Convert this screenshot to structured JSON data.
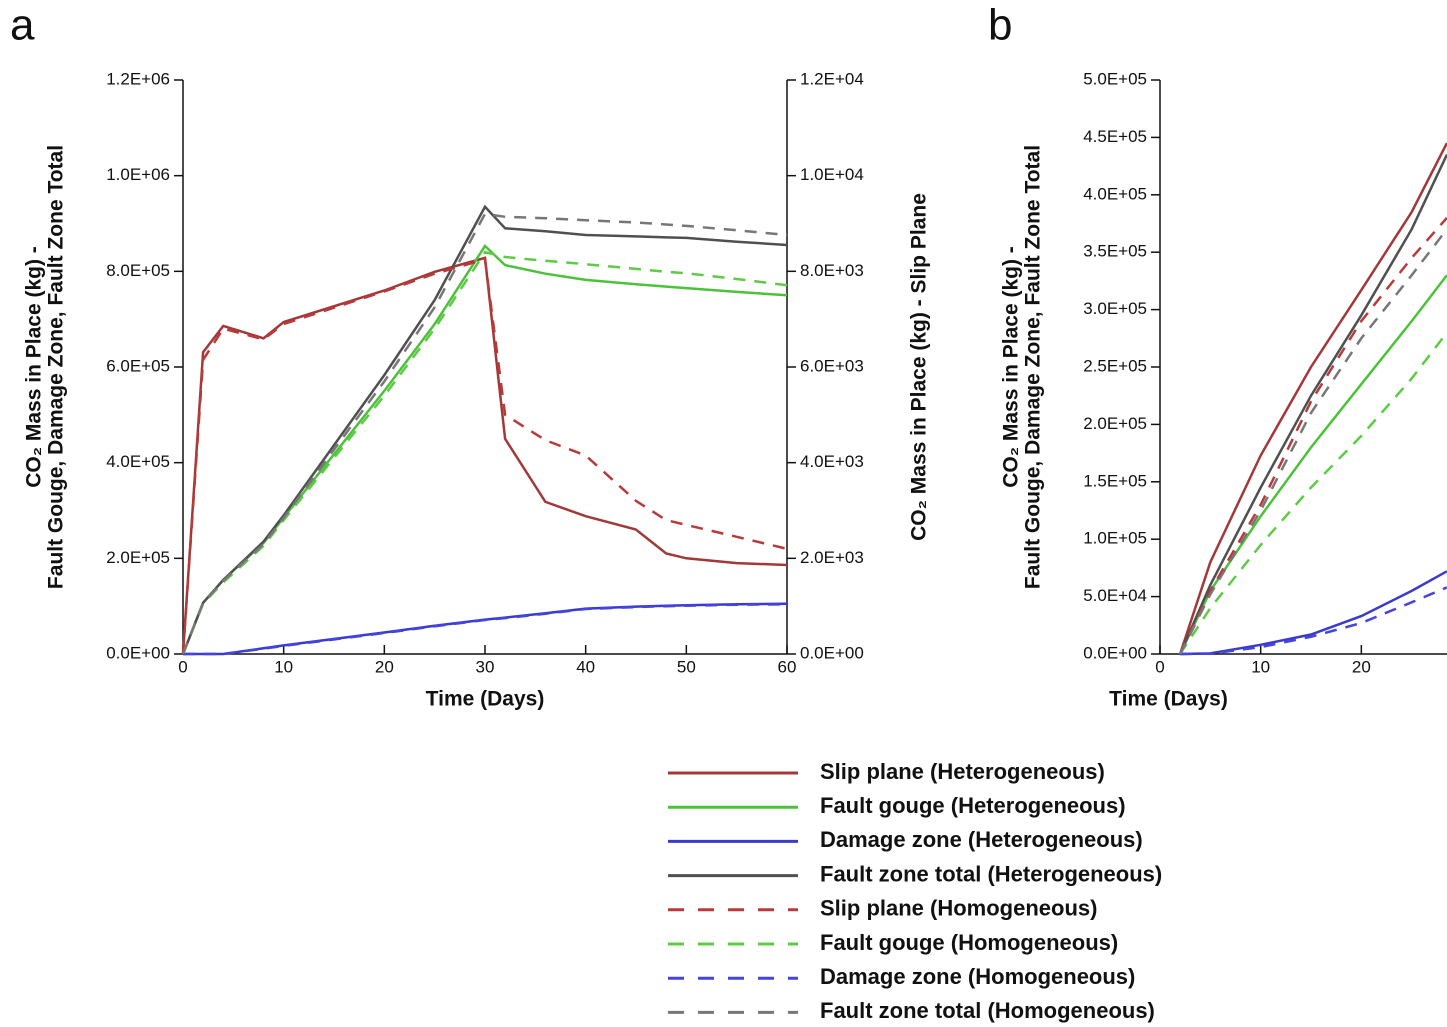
{
  "chart_data": [
    {
      "type": "line",
      "title": "a",
      "xlabel": "Time (Days)",
      "ylabel": [
        "CO₂ Mass in Place (kg) -",
        "Fault Gouge, Damage Zone, Fault Zone Total"
      ],
      "y2label": "CO₂ Mass in Place (kg) - Slip Plane",
      "x": [
        0,
        2,
        4,
        8,
        10,
        20,
        25,
        30,
        32,
        36,
        40,
        45,
        48,
        50,
        55,
        60
      ],
      "xlim": [
        0,
        60
      ],
      "xticks": [
        0,
        10,
        20,
        30,
        40,
        50,
        60
      ],
      "ylim": [
        0,
        1200000
      ],
      "yticks": [
        {
          "value": 0,
          "label": "0.0E+00"
        },
        {
          "value": 200000,
          "label": "2.0E+05"
        },
        {
          "value": 400000,
          "label": "4.0E+05"
        },
        {
          "value": 600000,
          "label": "6.0E+05"
        },
        {
          "value": 800000,
          "label": "8.0E+05"
        },
        {
          "value": 1000000,
          "label": "1.0E+06"
        },
        {
          "value": 1200000,
          "label": "1.2E+06"
        }
      ],
      "y2lim": [
        0,
        12000
      ],
      "y2ticks": [
        {
          "value": 0,
          "label": "0.0E+00"
        },
        {
          "value": 2000,
          "label": "2.0E+03"
        },
        {
          "value": 4000,
          "label": "4.0E+03"
        },
        {
          "value": 6000,
          "label": "6.0E+03"
        },
        {
          "value": 8000,
          "label": "8.0E+03"
        },
        {
          "value": 10000,
          "label": "1.0E+04"
        },
        {
          "value": 12000,
          "label": "1.2E+04"
        }
      ],
      "legend": "below",
      "series": [
        {
          "name": "Slip plane (Heterogeneous)",
          "color": "#a33838",
          "dash": false,
          "axis": "y2",
          "values": [
            0,
            6310,
            6860,
            6600,
            6940,
            7600,
            7990,
            8280,
            4500,
            3180,
            2880,
            2600,
            2100,
            2000,
            1900,
            1860
          ]
        },
        {
          "name": "Fault gouge (Heterogeneous)",
          "color": "#4cc23a",
          "dash": false,
          "values": [
            0,
            107000,
            155000,
            232000,
            285000,
            550000,
            690000,
            853000,
            813000,
            795000,
            782000,
            773000,
            768000,
            765000,
            757000,
            750000
          ]
        },
        {
          "name": "Damage zone (Heterogeneous)",
          "color": "#3a3acf",
          "dash": false,
          "values": [
            0,
            0,
            0,
            12000,
            18000,
            45000,
            59000,
            72000,
            76000,
            85000,
            95000,
            99000,
            101000,
            102000,
            104000,
            105000
          ]
        },
        {
          "name": "Fault zone total (Heterogeneous)",
          "color": "#505050",
          "dash": false,
          "values": [
            0,
            107000,
            155000,
            235000,
            290000,
            583000,
            740000,
            935000,
            890000,
            884000,
            876000,
            873000,
            871000,
            870000,
            862000,
            855000
          ]
        },
        {
          "name": "Slip plane (Homogeneous)",
          "color": "#b83a3a",
          "dash": true,
          "axis": "y2",
          "values": [
            0,
            6150,
            6800,
            6580,
            6900,
            7580,
            7950,
            8250,
            5000,
            4470,
            4150,
            3200,
            2800,
            2700,
            2450,
            2200
          ]
        },
        {
          "name": "Fault gouge (Homogeneous)",
          "color": "#5ccc45",
          "dash": true,
          "values": [
            0,
            105000,
            150000,
            226000,
            280000,
            540000,
            680000,
            840000,
            830000,
            822000,
            815000,
            805000,
            799000,
            796000,
            784000,
            771000
          ]
        },
        {
          "name": "Damage zone (Homogeneous)",
          "color": "#4545dd",
          "dash": true,
          "values": [
            0,
            0,
            0,
            11000,
            17000,
            44000,
            58000,
            71000,
            75000,
            84000,
            94000,
            98000,
            100000,
            101000,
            103000,
            104000
          ]
        },
        {
          "name": "Fault zone total (Homogeneous)",
          "color": "#777777",
          "dash": true,
          "values": [
            0,
            107000,
            153000,
            230000,
            285000,
            570000,
            725000,
            920000,
            914000,
            911000,
            907000,
            902000,
            898000,
            895000,
            886000,
            876000
          ]
        }
      ]
    },
    {
      "type": "line",
      "title": "b",
      "xlabel": "Time (Days)",
      "ylabel": [
        "CO₂ Mass in Place (kg) -",
        "Fault Gouge, Damage Zone, Fault Zone Total"
      ],
      "x": [
        2,
        5,
        10,
        15,
        20,
        25,
        28.5
      ],
      "xlim": [
        0,
        60
      ],
      "xticks": [
        0,
        10,
        20,
        30,
        40,
        50,
        60
      ],
      "ylim": [
        0,
        500000
      ],
      "yticks": [
        {
          "value": 0,
          "label": "0.0E+00"
        },
        {
          "value": 50000,
          "label": "5.0E+04"
        },
        {
          "value": 100000,
          "label": "1.0E+05"
        },
        {
          "value": 150000,
          "label": "1.5E+05"
        },
        {
          "value": 200000,
          "label": "2.0E+05"
        },
        {
          "value": 250000,
          "label": "2.5E+05"
        },
        {
          "value": 300000,
          "label": "3.0E+05"
        },
        {
          "value": 350000,
          "label": "3.5E+05"
        },
        {
          "value": 400000,
          "label": "4.0E+05"
        },
        {
          "value": 450000,
          "label": "4.5E+05"
        },
        {
          "value": 500000,
          "label": "5.0E+05"
        }
      ],
      "series": [
        {
          "color": "#a33838",
          "dash": false,
          "values": [
            0,
            80000,
            173000,
            250000,
            317000,
            385000,
            445000
          ]
        },
        {
          "color": "#4cc23a",
          "dash": false,
          "values": [
            0,
            55000,
            120000,
            180000,
            235000,
            290000,
            330000
          ]
        },
        {
          "color": "#3a3acf",
          "dash": false,
          "values": [
            0,
            500,
            8000,
            17000,
            33000,
            55000,
            72000
          ]
        },
        {
          "color": "#505050",
          "dash": false,
          "values": [
            0,
            60000,
            145000,
            225000,
            295000,
            370000,
            435000
          ]
        },
        {
          "color": "#b83a3a",
          "dash": true,
          "values": [
            0,
            55000,
            130000,
            220000,
            290000,
            345000,
            380000
          ]
        },
        {
          "color": "#5ccc45",
          "dash": true,
          "values": [
            0,
            40000,
            95000,
            145000,
            190000,
            240000,
            280000
          ]
        },
        {
          "color": "#4545dd",
          "dash": true,
          "values": [
            0,
            300,
            6000,
            15000,
            27000,
            45000,
            58000
          ]
        },
        {
          "color": "#777777",
          "dash": true,
          "values": [
            0,
            52000,
            125000,
            210000,
            275000,
            330000,
            370000
          ]
        }
      ]
    }
  ]
}
